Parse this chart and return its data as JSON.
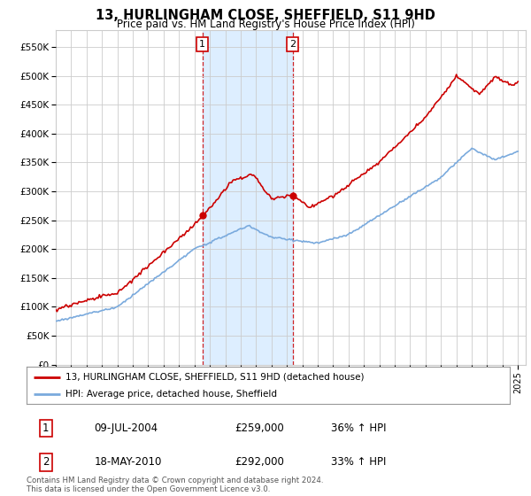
{
  "title": "13, HURLINGHAM CLOSE, SHEFFIELD, S11 9HD",
  "subtitle": "Price paid vs. HM Land Registry's House Price Index (HPI)",
  "legend_line1": "13, HURLINGHAM CLOSE, SHEFFIELD, S11 9HD (detached house)",
  "legend_line2": "HPI: Average price, detached house, Sheffield",
  "footer": "Contains HM Land Registry data © Crown copyright and database right 2024.\nThis data is licensed under the Open Government Licence v3.0.",
  "sale1_date": "09-JUL-2004",
  "sale1_price": "£259,000",
  "sale1_hpi": "36% ↑ HPI",
  "sale1_year": 2004.52,
  "sale1_value": 259000,
  "sale2_date": "18-MAY-2010",
  "sale2_price": "£292,000",
  "sale2_hpi": "33% ↑ HPI",
  "sale2_year": 2010.38,
  "sale2_value": 292000,
  "red_color": "#cc0000",
  "blue_color": "#7aaadd",
  "highlight_color": "#ddeeff",
  "grid_color": "#cccccc",
  "background_color": "#ffffff",
  "ylim": [
    0,
    580000
  ],
  "yticks": [
    0,
    50000,
    100000,
    150000,
    200000,
    250000,
    300000,
    350000,
    400000,
    450000,
    500000,
    550000
  ],
  "xlim_start": 1995,
  "xlim_end": 2025.5
}
